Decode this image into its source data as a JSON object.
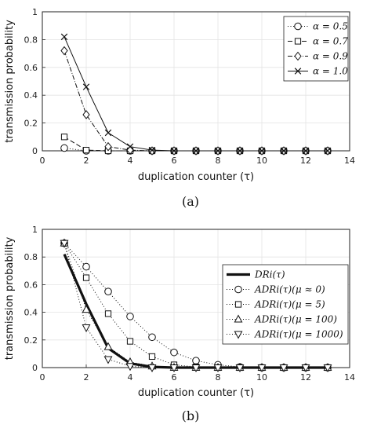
{
  "chart_data": [
    {
      "type": "line",
      "panel_label": "(a)",
      "xlabel": "duplication counter (τ)",
      "ylabel": "transmission probability",
      "xlim": [
        0,
        14
      ],
      "ylim": [
        0,
        1
      ],
      "xticks": [
        "0",
        "2",
        "4",
        "6",
        "8",
        "10",
        "12",
        "14"
      ],
      "yticks": [
        "0",
        "0.2",
        "0.4",
        "0.6",
        "0.8",
        "1"
      ],
      "grid": true,
      "legend_position": "top-right",
      "x": [
        1,
        2,
        3,
        4,
        5,
        6,
        7,
        8,
        9,
        10,
        11,
        12,
        13
      ],
      "series": [
        {
          "name": "α = 0.5",
          "marker": "circle",
          "dash": "1,2.5",
          "width": 1,
          "values": [
            0.02,
            0.0,
            0.0,
            0,
            0,
            0,
            0,
            0,
            0,
            0,
            0,
            0,
            0
          ]
        },
        {
          "name": "α = 0.7",
          "marker": "square",
          "dash": "6,3",
          "width": 1,
          "values": [
            0.1,
            0.005,
            0.0,
            0,
            0,
            0,
            0,
            0,
            0,
            0,
            0,
            0,
            0
          ]
        },
        {
          "name": "α = 0.9",
          "marker": "diamond",
          "dash": "6,2,1,2",
          "width": 1,
          "values": [
            0.72,
            0.26,
            0.03,
            0.005,
            0,
            0,
            0,
            0,
            0,
            0,
            0,
            0,
            0
          ]
        },
        {
          "name": "α = 1.0",
          "marker": "x",
          "dash": "",
          "width": 1,
          "values": [
            0.82,
            0.46,
            0.13,
            0.03,
            0.005,
            0,
            0,
            0,
            0,
            0,
            0,
            0,
            0
          ]
        }
      ]
    },
    {
      "type": "line",
      "panel_label": "(b)",
      "xlabel": "duplication counter (τ)",
      "ylabel": "transmission probability",
      "xlim": [
        0,
        14
      ],
      "ylim": [
        0,
        1
      ],
      "xticks": [
        "0",
        "2",
        "4",
        "6",
        "8",
        "10",
        "12",
        "14"
      ],
      "yticks": [
        "0",
        "0.2",
        "0.4",
        "0.6",
        "0.8",
        "1"
      ],
      "grid": true,
      "legend_position": "center-right",
      "x": [
        1,
        2,
        3,
        4,
        5,
        6,
        7,
        8,
        9,
        10,
        11,
        12,
        13
      ],
      "series": [
        {
          "name": "DRi(τ)",
          "marker": "none",
          "dash": "",
          "width": 3.2,
          "values": [
            0.82,
            0.46,
            0.14,
            0.03,
            0.005,
            0,
            0,
            0,
            0,
            0,
            0,
            0,
            0
          ]
        },
        {
          "name": "ADRi(τ)(μ ≈ 0)",
          "marker": "circle",
          "dash": "1,2.5",
          "width": 1,
          "values": [
            0.9,
            0.73,
            0.55,
            0.37,
            0.22,
            0.11,
            0.05,
            0.02,
            0.005,
            0,
            0,
            0,
            0
          ]
        },
        {
          "name": "ADRi(τ)(μ = 5)",
          "marker": "square",
          "dash": "1,2.5",
          "width": 1,
          "values": [
            0.9,
            0.65,
            0.39,
            0.19,
            0.08,
            0.02,
            0.005,
            0,
            0,
            0,
            0,
            0,
            0
          ]
        },
        {
          "name": "ADRi(τ)(μ = 100)",
          "marker": "triangle",
          "dash": "1,2.5",
          "width": 1,
          "values": [
            0.9,
            0.42,
            0.15,
            0.04,
            0.01,
            0,
            0,
            0,
            0,
            0,
            0,
            0,
            0
          ]
        },
        {
          "name": "ADRi(τ)(μ = 1000)",
          "marker": "triangle-down",
          "dash": "1,2.5",
          "width": 1,
          "values": [
            0.9,
            0.29,
            0.06,
            0.01,
            0,
            0,
            0,
            0,
            0,
            0,
            0,
            0,
            0
          ]
        }
      ]
    }
  ]
}
